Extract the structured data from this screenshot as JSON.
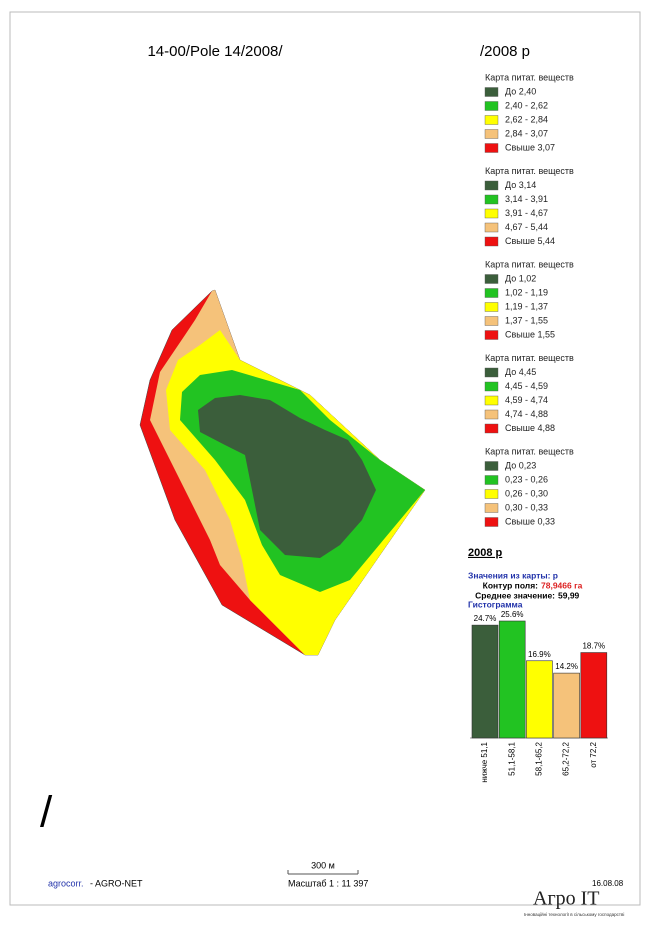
{
  "header": {
    "title_left": "14-00/Pole 14/2008/",
    "title_right": "/2008 р"
  },
  "legends": [
    {
      "title": "Карта питат. веществ",
      "items": [
        {
          "label": "До 2,40",
          "color": "#3b5e3b"
        },
        {
          "label": "2,40 - 2,62",
          "color": "#22c322"
        },
        {
          "label": "2,62 - 2,84",
          "color": "#ffff00"
        },
        {
          "label": "2,84 - 3,07",
          "color": "#f5c27a"
        },
        {
          "label": "Свыше 3,07",
          "color": "#ee1111"
        }
      ]
    },
    {
      "title": "Карта питат. веществ",
      "items": [
        {
          "label": "До 3,14",
          "color": "#3b5e3b"
        },
        {
          "label": "3,14 - 3,91",
          "color": "#22c322"
        },
        {
          "label": "3,91 - 4,67",
          "color": "#ffff00"
        },
        {
          "label": "4,67 - 5,44",
          "color": "#f5c27a"
        },
        {
          "label": "Свыше 5,44",
          "color": "#ee1111"
        }
      ]
    },
    {
      "title": "Карта питат. веществ",
      "items": [
        {
          "label": "До 1,02",
          "color": "#3b5e3b"
        },
        {
          "label": "1,02 - 1,19",
          "color": "#22c322"
        },
        {
          "label": "1,19 - 1,37",
          "color": "#ffff00"
        },
        {
          "label": "1,37 - 1,55",
          "color": "#f5c27a"
        },
        {
          "label": "Свыше 1,55",
          "color": "#ee1111"
        }
      ]
    },
    {
      "title": "Карта питат. веществ",
      "items": [
        {
          "label": "До 4,45",
          "color": "#3b5e3b"
        },
        {
          "label": "4,45 - 4,59",
          "color": "#22c322"
        },
        {
          "label": "4,59 - 4,74",
          "color": "#ffff00"
        },
        {
          "label": "4,74 - 4,88",
          "color": "#f5c27a"
        },
        {
          "label": "Свыше 4,88",
          "color": "#ee1111"
        }
      ]
    },
    {
      "title": "Карта питат. веществ",
      "items": [
        {
          "label": "До 0,23",
          "color": "#3b5e3b"
        },
        {
          "label": "0,23 - 0,26",
          "color": "#22c322"
        },
        {
          "label": "0,26 - 0,30",
          "color": "#ffff00"
        },
        {
          "label": "0,30 - 0,33",
          "color": "#f5c27a"
        },
        {
          "label": "Свыше 0,33",
          "color": "#ee1111"
        }
      ]
    }
  ],
  "stats": {
    "heading": "2008 р",
    "source": "Значения из карты: р",
    "area_label": "Контур поля:",
    "area_value": "78,9466 га",
    "mean_label": "Среднее значение:",
    "mean_value": "59,99",
    "histogram_title": "Гистограмма"
  },
  "histogram": {
    "type": "bar",
    "categories": [
      "нижче 51,1",
      "51,1-58,1",
      "58,1-65,2",
      "65,2-72,2",
      "от 72,2"
    ],
    "values": [
      24.7,
      25.6,
      16.9,
      14.2,
      18.7
    ],
    "value_labels": [
      "24.7%",
      "25.6%",
      "16.9%",
      "14.2%",
      "18.7%"
    ],
    "colors": [
      "#3b5e3b",
      "#22c322",
      "#ffff00",
      "#f5c27a",
      "#ee1111"
    ]
  },
  "mark": "/",
  "footer": {
    "brand": "agrocorr.",
    "suffix": "- AGRO-NET",
    "scale_bar": "300 м",
    "scale": "Масштаб  1 : 11 397",
    "date": "16.08.08",
    "logo": "Агро IT",
    "tagline": "Інноваційні технології в сільському господарстві"
  }
}
